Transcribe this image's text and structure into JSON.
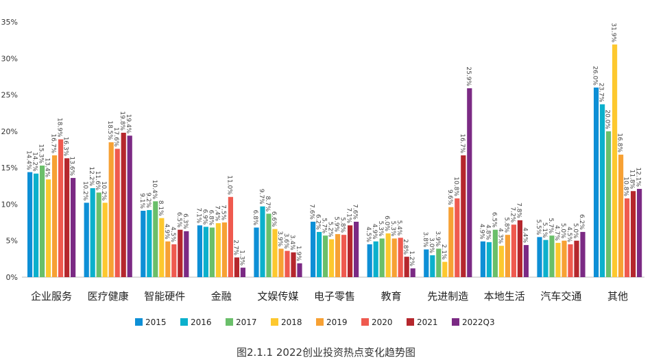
{
  "chart_data": {
    "type": "bar",
    "title": "",
    "caption": "图2.1.1    2022创业投资热点变化趋势图",
    "ylim": [
      0,
      35
    ],
    "yticks": [
      "0%",
      "5%",
      "10%",
      "15%",
      "20%",
      "25%",
      "30%",
      "35%"
    ],
    "grid": false,
    "legend_position": "bottom",
    "categories": [
      "企业服务",
      "医疗健康",
      "智能硬件",
      "金融",
      "文娱传媒",
      "电子零售",
      "教育",
      "先进制造",
      "本地生活",
      "汽车交通",
      "其他"
    ],
    "series": [
      {
        "name": "2015",
        "color": "#0d8fd6",
        "values": [
          14.4,
          10.2,
          9.1,
          7.1,
          6.8,
          7.6,
          4.5,
          3.8,
          4.9,
          5.5,
          26.0
        ]
      },
      {
        "name": "2016",
        "color": "#0bb0cc",
        "values": [
          14.2,
          12.2,
          9.2,
          6.9,
          9.7,
          6.2,
          4.9,
          3.0,
          4.8,
          5.1,
          23.7
        ]
      },
      {
        "name": "2017",
        "color": "#6abf6a",
        "values": [
          15.3,
          11.6,
          10.4,
          6.8,
          8.7,
          5.7,
          5.3,
          3.9,
          6.5,
          5.7,
          20.0
        ]
      },
      {
        "name": "2018",
        "color": "#fdc82f",
        "values": [
          13.4,
          10.2,
          8.1,
          7.4,
          6.6,
          5.2,
          6.0,
          2.1,
          4.3,
          4.7,
          31.9
        ]
      },
      {
        "name": "2019",
        "color": "#f7a134",
        "values": [
          16.7,
          18.5,
          4.9,
          7.5,
          3.9,
          5.9,
          5.3,
          9.6,
          5.8,
          5.0,
          16.8
        ]
      },
      {
        "name": "2020",
        "color": "#ef5a4f",
        "values": [
          18.9,
          17.6,
          4.5,
          11.0,
          3.6,
          5.8,
          5.4,
          10.8,
          7.2,
          4.5,
          10.8
        ]
      },
      {
        "name": "2021",
        "color": "#b5272d",
        "values": [
          16.3,
          19.8,
          6.5,
          2.7,
          3.4,
          7.1,
          2.8,
          16.7,
          7.8,
          5.0,
          11.8
        ]
      },
      {
        "name": "2022Q3",
        "color": "#7b2a84",
        "values": [
          13.6,
          19.4,
          6.3,
          1.3,
          1.9,
          7.6,
          1.2,
          25.9,
          4.4,
          6.2,
          12.1
        ]
      }
    ]
  }
}
